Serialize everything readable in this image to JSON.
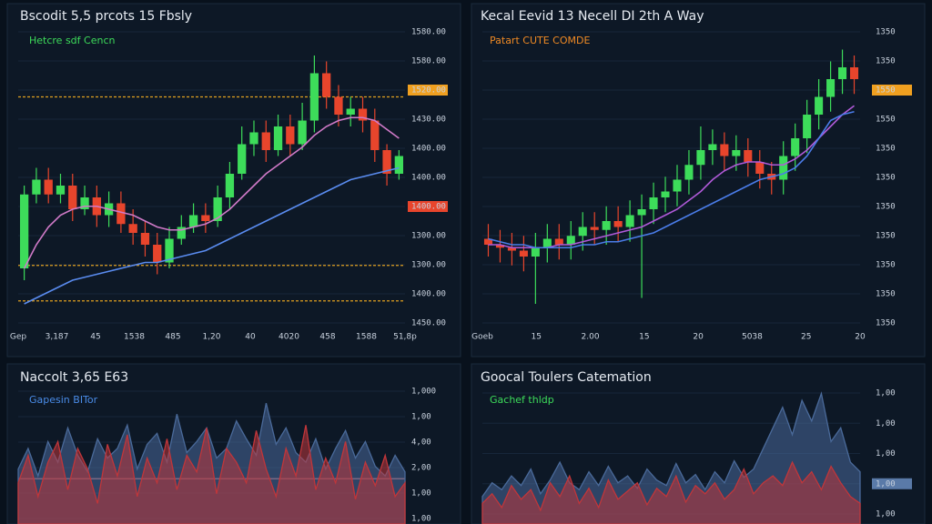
{
  "panels": [
    {
      "type": "candlestick",
      "title": "Bscodit 5,5 prcots 15 Fbsly",
      "legend": "Hetcre sdf Cencn",
      "legend_color": "#3ddc5a",
      "y_labels": [
        "1580.00",
        "1580.00",
        {
          "label": "1520.00",
          "color": "#f0a020"
        },
        "1430.00",
        "1400.00",
        "1400.00",
        {
          "label": "1400.00",
          "color": "#e8452c"
        },
        "1300.00",
        "1300.00",
        "1400.00",
        "1450.00"
      ],
      "x_labels": [
        "Gep",
        "3,187",
        "45",
        "1538",
        "485",
        "1,20",
        "40",
        "4020",
        "458",
        "1588",
        "51,8p"
      ],
      "ylim": [
        0,
        100
      ],
      "open": [
        20,
        45,
        50,
        45,
        48,
        40,
        44,
        38,
        42,
        35,
        32,
        28,
        22,
        30,
        34,
        38,
        36,
        44,
        52,
        62,
        66,
        60,
        68,
        62,
        70,
        86,
        78,
        72,
        74,
        70,
        60,
        52
      ],
      "close": [
        45,
        50,
        45,
        48,
        40,
        44,
        38,
        42,
        35,
        32,
        28,
        22,
        30,
        34,
        38,
        36,
        44,
        52,
        62,
        66,
        60,
        68,
        62,
        70,
        86,
        78,
        72,
        74,
        70,
        60,
        52,
        58
      ],
      "high": [
        48,
        54,
        54,
        52,
        52,
        48,
        48,
        46,
        46,
        40,
        36,
        32,
        34,
        38,
        42,
        42,
        48,
        56,
        68,
        70,
        70,
        72,
        72,
        76,
        92,
        90,
        82,
        78,
        78,
        74,
        62,
        60
      ],
      "low": [
        16,
        42,
        42,
        42,
        36,
        38,
        34,
        34,
        32,
        28,
        24,
        18,
        20,
        28,
        32,
        32,
        34,
        40,
        50,
        58,
        56,
        58,
        58,
        60,
        66,
        74,
        68,
        68,
        66,
        56,
        48,
        50
      ],
      "lines": [
        {
          "color": "#d07ac8",
          "values": [
            20,
            28,
            34,
            38,
            40,
            41,
            41,
            40,
            39,
            38,
            36,
            34,
            33,
            33,
            34,
            35,
            37,
            40,
            44,
            48,
            52,
            55,
            58,
            61,
            65,
            68,
            70,
            71,
            71,
            70,
            67,
            64
          ]
        },
        {
          "color": "#5a8cf0",
          "values": [
            8,
            10,
            12,
            14,
            16,
            17,
            18,
            19,
            20,
            21,
            22,
            22,
            23,
            24,
            25,
            26,
            28,
            30,
            32,
            34,
            36,
            38,
            40,
            42,
            44,
            46,
            48,
            50,
            51,
            52,
            53,
            54
          ]
        }
      ],
      "levels": [
        78,
        21,
        9
      ],
      "level_color": "#e0a020"
    },
    {
      "type": "candlestick",
      "title": "Kecal Eevid 13 Necell DI 2th A Way",
      "legend": "Patart CUTE COMDE",
      "legend_color": "#f08a24",
      "y_labels": [
        "1350",
        "1350",
        {
          "label": "1550",
          "color": "#f0a020"
        },
        "1550",
        "1350",
        "1350",
        "1350",
        "1350",
        "1350",
        "1350",
        "1350"
      ],
      "x_labels": [
        "Goeb",
        "15",
        "2.00",
        "15",
        "20",
        "5038",
        "25",
        "20"
      ],
      "ylim": [
        0,
        100
      ],
      "open": [
        30,
        28,
        27,
        26,
        24,
        27,
        30,
        28,
        31,
        34,
        33,
        36,
        34,
        38,
        40,
        44,
        46,
        50,
        55,
        60,
        62,
        58,
        60,
        56,
        52,
        50,
        58,
        64,
        72,
        78,
        84,
        88
      ],
      "close": [
        28,
        27,
        26,
        24,
        27,
        30,
        28,
        31,
        34,
        33,
        36,
        34,
        38,
        40,
        44,
        46,
        50,
        55,
        60,
        62,
        58,
        60,
        56,
        52,
        50,
        58,
        64,
        72,
        78,
        84,
        88,
        84
      ],
      "high": [
        35,
        33,
        32,
        31,
        32,
        35,
        35,
        36,
        39,
        39,
        41,
        41,
        43,
        45,
        49,
        51,
        55,
        60,
        68,
        67,
        66,
        65,
        64,
        60,
        56,
        63,
        69,
        77,
        84,
        90,
        94,
        92
      ],
      "low": [
        24,
        22,
        21,
        19,
        8,
        22,
        23,
        23,
        26,
        28,
        28,
        29,
        29,
        10,
        35,
        39,
        41,
        45,
        50,
        55,
        53,
        53,
        51,
        47,
        45,
        45,
        53,
        59,
        67,
        73,
        79,
        79
      ],
      "lines": [
        {
          "color": "#b05ad8",
          "values": [
            28,
            28,
            27,
            27,
            27,
            27,
            28,
            28,
            29,
            30,
            31,
            32,
            33,
            34,
            36,
            38,
            40,
            43,
            46,
            50,
            53,
            55,
            56,
            56,
            55,
            55,
            57,
            60,
            64,
            68,
            72,
            75
          ]
        },
        {
          "color": "#4a7ce8",
          "values": [
            30,
            29,
            28,
            28,
            27,
            27,
            27,
            27,
            28,
            28,
            29,
            29,
            30,
            31,
            32,
            34,
            36,
            38,
            40,
            42,
            44,
            46,
            48,
            50,
            51,
            52,
            54,
            58,
            64,
            70,
            72,
            73
          ]
        }
      ]
    },
    {
      "type": "area",
      "title": "Naccolt 3,65 E63",
      "legend": "Gapesin BITor",
      "legend_color": "#4a8ce8",
      "y_labels": [
        "1,000",
        "1,00",
        "4,00",
        "2,00",
        "1,00",
        "1,00"
      ],
      "ylim": [
        0,
        100
      ],
      "series": [
        {
          "color": "#4a6a9a",
          "values": [
            40,
            55,
            35,
            60,
            45,
            70,
            50,
            38,
            62,
            48,
            55,
            72,
            40,
            58,
            66,
            45,
            80,
            52,
            60,
            70,
            48,
            55,
            75,
            62,
            50,
            88,
            58,
            70,
            52,
            45,
            62,
            40,
            55,
            68,
            48,
            60,
            42,
            35,
            50,
            38
          ]
        },
        {
          "color": "#c0363a",
          "values": [
            30,
            50,
            20,
            45,
            60,
            25,
            55,
            40,
            15,
            58,
            35,
            65,
            20,
            48,
            30,
            62,
            25,
            50,
            38,
            70,
            22,
            55,
            45,
            30,
            68,
            40,
            20,
            55,
            35,
            72,
            25,
            48,
            30,
            60,
            18,
            45,
            28,
            50,
            20,
            30
          ]
        }
      ],
      "levels": [
        33
      ],
      "level_color": "#f08080"
    },
    {
      "type": "area",
      "title": "Goocal Toulers Catemation",
      "legend": "Gachef thldp",
      "legend_color": "#3ddc5a",
      "y_labels": [
        "1,00",
        "1,00",
        "1,00",
        {
          "label": "1,00",
          "color": "#5a7aa8"
        },
        "1,00"
      ],
      "ylim": [
        0,
        100
      ],
      "series": [
        {
          "color": "#4a6a9a",
          "values": [
            20,
            30,
            25,
            35,
            28,
            40,
            22,
            32,
            45,
            30,
            25,
            38,
            28,
            42,
            30,
            35,
            26,
            40,
            32,
            28,
            44,
            30,
            36,
            25,
            38,
            30,
            46,
            34,
            40,
            55,
            70,
            85,
            65,
            90,
            75,
            95,
            60,
            70,
            45,
            38
          ]
        },
        {
          "color": "#c0363a",
          "values": [
            15,
            22,
            12,
            28,
            18,
            25,
            10,
            30,
            20,
            35,
            15,
            26,
            12,
            32,
            18,
            24,
            30,
            14,
            26,
            20,
            35,
            16,
            28,
            22,
            30,
            18,
            25,
            40,
            22,
            30,
            35,
            28,
            45,
            30,
            38,
            25,
            42,
            30,
            20,
            15
          ]
        }
      ]
    }
  ]
}
